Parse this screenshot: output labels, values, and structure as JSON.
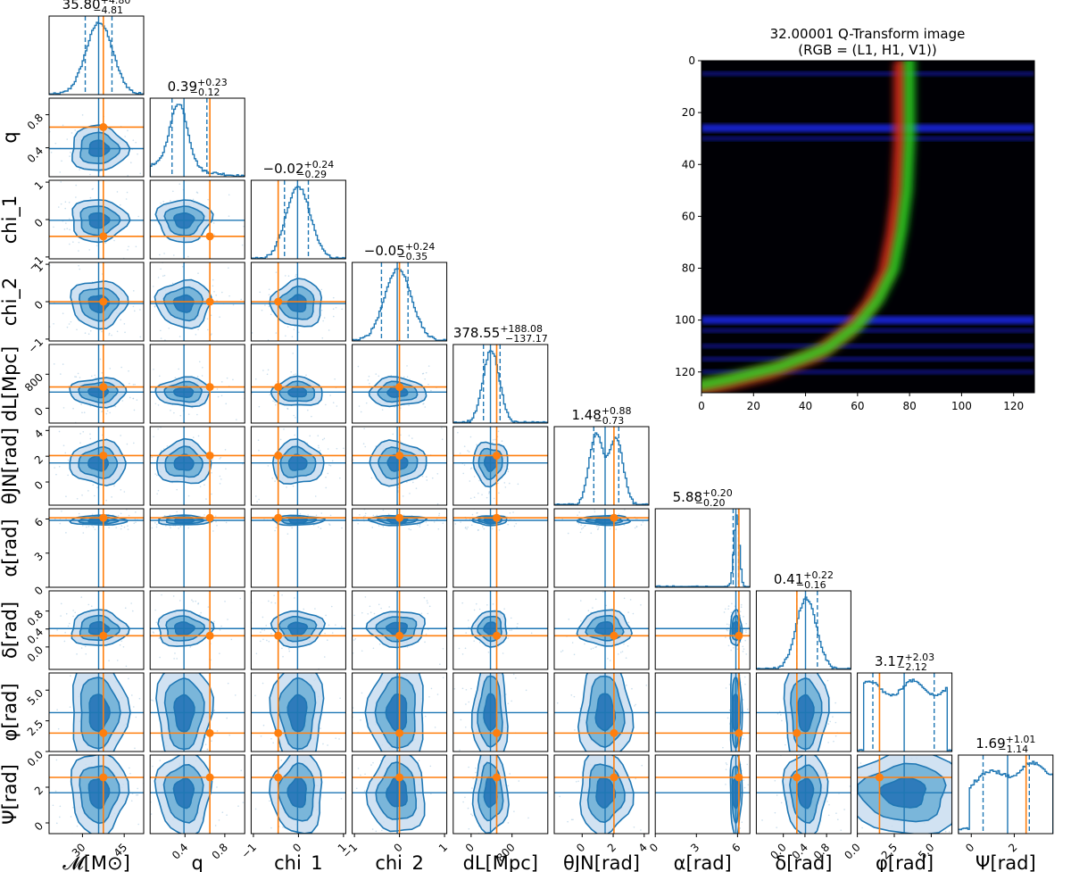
{
  "colors": {
    "blue": "#1f77b4",
    "orange": "#ff7f0e",
    "fill_light": "#c6dbef",
    "fill_mid": "#6baed6",
    "fill_dark": "#2171b5",
    "scatter": "#a6c8e0"
  },
  "chart_data": [
    {
      "type": "corner",
      "params": [
        "𝓜[M⊙]",
        "q",
        "chi_1",
        "chi_2",
        "dL[Mpc]",
        "θJN[rad]",
        "α[rad]",
        "δ[rad]",
        "φ[rad]",
        "Ψ[rad]"
      ],
      "xlabels": [
        "𝓜[M⊙]",
        "q",
        "chi_1",
        "chi_2",
        "dL[Mpc]",
        "θJN[rad]",
        "α[rad]",
        "δ[rad]",
        "φ[rad]",
        "Ψ[rad]"
      ],
      "ylabels": [
        "",
        "q",
        "chi_1",
        "chi_2",
        "dL[Mpc]",
        "θJN[rad]",
        "α[rad]",
        "δ[rad]",
        "φ[rad]",
        "Ψ[rad]"
      ],
      "ranges": [
        [
          18,
          52
        ],
        [
          0.05,
          1.0
        ],
        [
          -1.05,
          1.05
        ],
        [
          -1.05,
          1.05
        ],
        [
          -350,
          1500
        ],
        [
          -1.8,
          4.3
        ],
        [
          0,
          6.9
        ],
        [
          -0.5,
          1.25
        ],
        [
          0,
          6.4
        ],
        [
          -0.6,
          3.8
        ]
      ],
      "ticks": [
        [
          30,
          45
        ],
        [
          0.4,
          0.8
        ],
        [
          -1,
          0,
          1
        ],
        [
          -1,
          0,
          1
        ],
        [
          0,
          800
        ],
        [
          0,
          2,
          4
        ],
        [
          0,
          3,
          6
        ],
        [
          0.0,
          0.4,
          0.8
        ],
        [
          0.0,
          2.5,
          5.0
        ],
        [
          0,
          2
        ]
      ],
      "ticklabels": [
        [
          "30",
          "45"
        ],
        [
          "0.4",
          "0.8"
        ],
        [
          "−1",
          "0",
          "1"
        ],
        [
          "−1",
          "0",
          "1"
        ],
        [
          "0",
          "800"
        ],
        [
          "0",
          "2",
          "4"
        ],
        [
          "0",
          "3",
          "6"
        ],
        [
          "0.0",
          "0.4",
          "0.8"
        ],
        [
          "0.0",
          "2.5",
          "5.0"
        ],
        [
          "0",
          "2"
        ]
      ],
      "medians": [
        35.8,
        0.39,
        -0.02,
        -0.05,
        378.55,
        1.48,
        5.88,
        0.41,
        3.17,
        1.69
      ],
      "sigmas": [
        4.8,
        0.13,
        0.27,
        0.3,
        160,
        0.8,
        0.2,
        0.19,
        2.0,
        1.1
      ],
      "lower_quantiles": [
        31.0,
        0.27,
        -0.31,
        -0.4,
        241.38,
        0.75,
        5.68,
        0.25,
        1.05,
        0.55
      ],
      "upper_quantiles": [
        40.6,
        0.62,
        0.22,
        0.19,
        566.63,
        2.36,
        6.08,
        0.63,
        5.2,
        2.7
      ],
      "true_values": [
        37.5,
        0.65,
        -0.45,
        0.0,
        500,
        2.05,
        6.1,
        0.25,
        1.5,
        2.55
      ],
      "titles": [
        {
          "value": "35.80",
          "plus": "+4.80",
          "minus": "−4.81"
        },
        {
          "value": "0.39",
          "plus": "+0.23",
          "minus": "−0.12"
        },
        {
          "value": "−0.02",
          "plus": "+0.24",
          "minus": "−0.29"
        },
        {
          "value": "−0.05",
          "plus": "+0.24",
          "minus": "−0.35"
        },
        {
          "value": "378.55",
          "plus": "+188.08",
          "minus": "−137.17"
        },
        {
          "value": "1.48",
          "plus": "+0.88",
          "minus": "−0.73"
        },
        {
          "value": "5.88",
          "plus": "+0.20",
          "minus": "−0.20"
        },
        {
          "value": "0.41",
          "plus": "+0.22",
          "minus": "−0.16"
        },
        {
          "value": "3.17",
          "plus": "+2.03",
          "minus": "−2.12"
        },
        {
          "value": "1.69",
          "plus": "+1.01",
          "minus": "−1.14"
        }
      ]
    },
    {
      "type": "heatmap",
      "title_line1": "32.00001 Q-Transform image",
      "title_line2": "(RGB = (L1, H1, V1))",
      "xlim": [
        0,
        128
      ],
      "ylim": [
        128,
        0
      ],
      "xticks": [
        "0",
        "20",
        "40",
        "60",
        "80",
        "100",
        "120"
      ],
      "yticks": [
        "0",
        "20",
        "40",
        "60",
        "80",
        "100",
        "120"
      ],
      "blue_bands_y": [
        5,
        26,
        30,
        100,
        104,
        110,
        115,
        120
      ],
      "track_points": [
        [
          80,
          0
        ],
        [
          80,
          30
        ],
        [
          79,
          50
        ],
        [
          77,
          65
        ],
        [
          74,
          80
        ],
        [
          68,
          92
        ],
        [
          60,
          102
        ],
        [
          48,
          111
        ],
        [
          30,
          118
        ],
        [
          10,
          123
        ],
        [
          0,
          125
        ]
      ]
    }
  ]
}
